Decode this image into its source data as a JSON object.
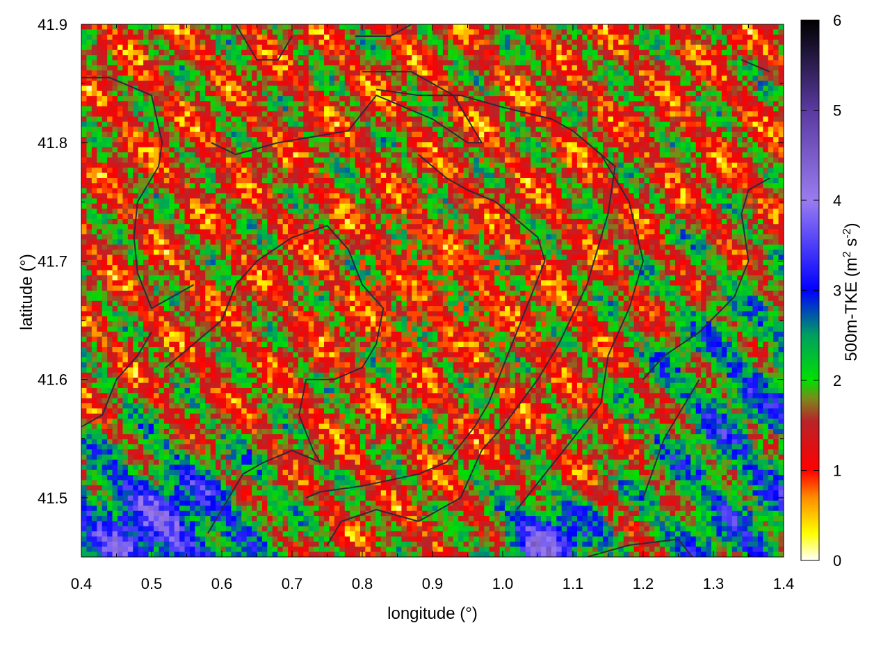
{
  "chart_data": {
    "type": "heatmap",
    "xlabel": "longitude (°)",
    "ylabel": "latitude (°)",
    "xlim": [
      0.4,
      1.4
    ],
    "ylim": [
      41.45,
      41.9
    ],
    "xticks": [
      "0.4",
      "0.5",
      "0.6",
      "0.7",
      "0.8",
      "0.9",
      "1.0",
      "1.1",
      "1.2",
      "1.3",
      "1.4"
    ],
    "yticks": [
      "41.5",
      "41.6",
      "41.7",
      "41.8",
      "41.9"
    ],
    "colorbar": {
      "label_main": "500m-TKE (m",
      "label_sup1": "2",
      "label_mid": " s",
      "label_sup2": "-2",
      "label_end": ")",
      "min": 0,
      "max": 6,
      "ticks": [
        "0",
        "1",
        "2",
        "3",
        "4",
        "5",
        "6"
      ],
      "stops": [
        {
          "v": 0.0,
          "color": "#ffffff"
        },
        {
          "v": 0.3,
          "color": "#ffff00"
        },
        {
          "v": 0.7,
          "color": "#ff8c00"
        },
        {
          "v": 1.0,
          "color": "#ff0000"
        },
        {
          "v": 1.55,
          "color": "#b8242a"
        },
        {
          "v": 1.8,
          "color": "#7a8a1a"
        },
        {
          "v": 2.0,
          "color": "#00e000"
        },
        {
          "v": 2.5,
          "color": "#00a060"
        },
        {
          "v": 3.0,
          "color": "#0000ff"
        },
        {
          "v": 4.0,
          "color": "#9a7cf0"
        },
        {
          "v": 5.0,
          "color": "#5a3aa0"
        },
        {
          "v": 6.0,
          "color": "#000000"
        }
      ]
    },
    "field_description_regions": [
      {
        "name": "north-west mostly red with green stripes",
        "lon": [
          0.4,
          0.9
        ],
        "lat": [
          41.6,
          41.9
        ],
        "mean_tke": 1.3
      },
      {
        "name": "centre fine-grained red/orange/green",
        "lon": [
          0.7,
          1.1
        ],
        "lat": [
          41.55,
          41.8
        ],
        "mean_tke": 1.3
      },
      {
        "name": "south-west blue/purple",
        "lon": [
          0.4,
          0.75
        ],
        "lat": [
          41.45,
          41.57
        ],
        "mean_tke": 3.0
      },
      {
        "name": "east green/blue stripes",
        "lon": [
          1.15,
          1.4
        ],
        "lat": [
          41.45,
          41.72
        ],
        "mean_tke": 2.4
      },
      {
        "name": "north-east red stripes",
        "lon": [
          1.05,
          1.4
        ],
        "lat": [
          41.72,
          41.9
        ],
        "mean_tke": 1.3
      },
      {
        "name": "south centre blue/purple patch",
        "lon": [
          1.0,
          1.12
        ],
        "lat": [
          41.45,
          41.5
        ],
        "mean_tke": 3.6
      }
    ],
    "grid": false
  }
}
